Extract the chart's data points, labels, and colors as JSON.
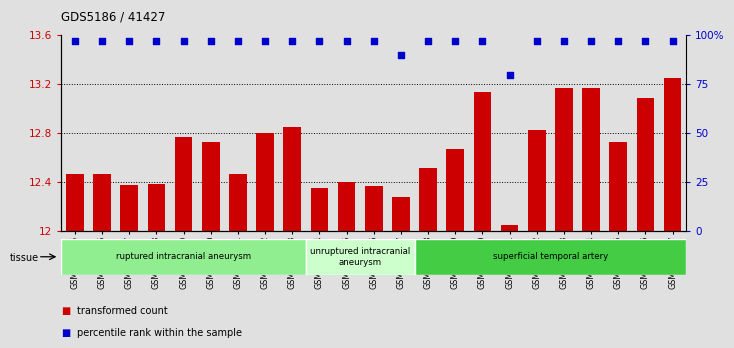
{
  "title": "GDS5186 / 41427",
  "categories": [
    "GSM1306885",
    "GSM1306886",
    "GSM1306887",
    "GSM1306888",
    "GSM1306889",
    "GSM1306890",
    "GSM1306891",
    "GSM1306892",
    "GSM1306893",
    "GSM1306894",
    "GSM1306895",
    "GSM1306896",
    "GSM1306897",
    "GSM1306898",
    "GSM1306899",
    "GSM1306900",
    "GSM1306901",
    "GSM1306902",
    "GSM1306903",
    "GSM1306904",
    "GSM1306905",
    "GSM1306906",
    "GSM1306907"
  ],
  "bar_values": [
    12.47,
    12.47,
    12.38,
    12.39,
    12.77,
    12.73,
    12.47,
    12.8,
    12.85,
    12.35,
    12.4,
    12.37,
    12.28,
    12.52,
    12.67,
    13.14,
    12.05,
    12.83,
    13.17,
    13.17,
    12.73,
    13.09,
    13.25
  ],
  "percentile_values": [
    97,
    97,
    97,
    97,
    97,
    97,
    97,
    97,
    97,
    97,
    97,
    97,
    90,
    97,
    97,
    97,
    80,
    97,
    97,
    97,
    97,
    97,
    97
  ],
  "bar_color": "#cc0000",
  "percentile_color": "#0000cc",
  "ylim_left": [
    12.0,
    13.6
  ],
  "ylim_right": [
    0,
    100
  ],
  "yticks_left": [
    12.0,
    12.4,
    12.8,
    13.2,
    13.6
  ],
  "ytick_labels_left": [
    "12",
    "12.4",
    "12.8",
    "13.2",
    "13.6"
  ],
  "yticks_right": [
    0,
    25,
    50,
    75,
    100
  ],
  "ytick_labels_right": [
    "0",
    "25",
    "50",
    "75",
    "100%"
  ],
  "hlines": [
    12.4,
    12.8,
    13.2
  ],
  "group_labels": [
    "ruptured intracranial aneurysm",
    "unruptured intracranial\naneurysm",
    "superficial temporal artery"
  ],
  "group_starts": [
    0,
    9,
    13
  ],
  "group_ends": [
    8,
    12,
    22
  ],
  "group_colors": [
    "#90ee90",
    "#ccffcc",
    "#44cc44"
  ],
  "tissue_label": "tissue",
  "legend_bar_label": "transformed count",
  "legend_perc_label": "percentile rank within the sample",
  "bg_color": "#e0e0e0",
  "plot_bg_color": "#e0e0e0"
}
